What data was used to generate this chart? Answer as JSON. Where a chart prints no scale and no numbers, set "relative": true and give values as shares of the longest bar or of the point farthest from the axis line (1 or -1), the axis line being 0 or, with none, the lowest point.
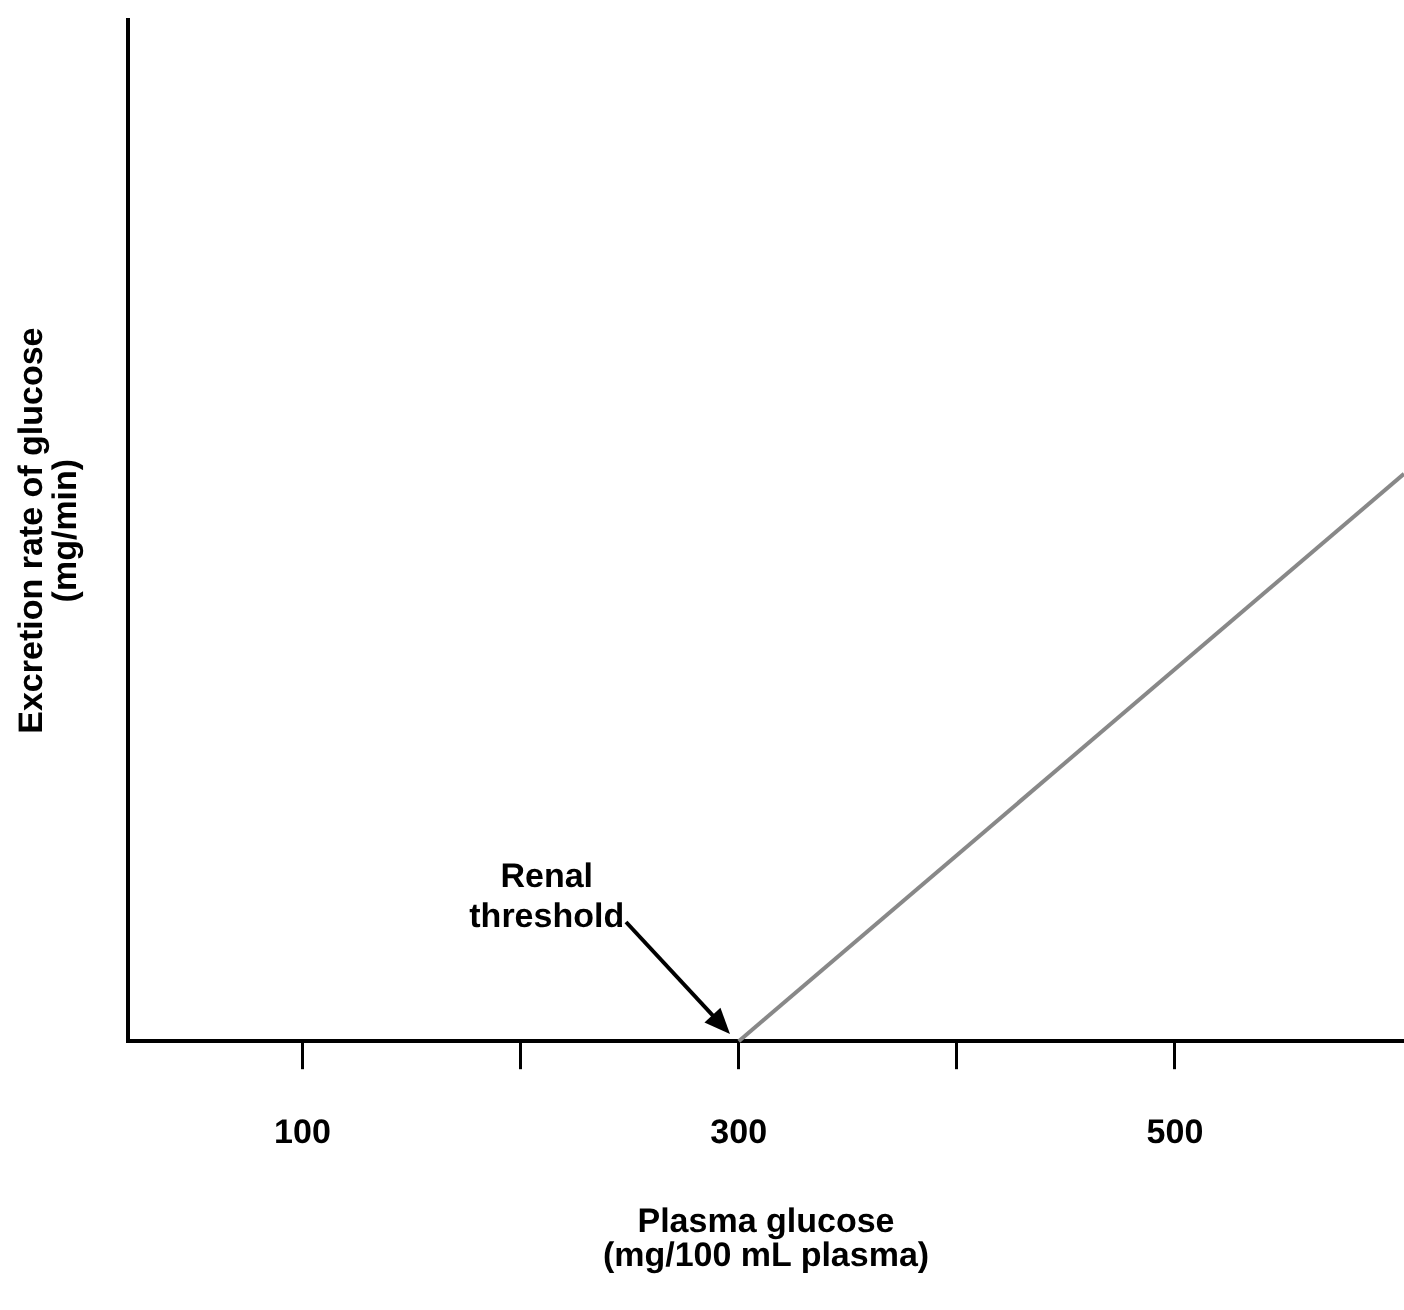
{
  "chart_data": {
    "type": "line",
    "relative": true,
    "xlabel": "Plasma glucose\n(mg/100 mL plasma)",
    "ylabel": "Excretion rate of glucose\n(mg/min)",
    "x": [
      300,
      605
    ],
    "series": [
      {
        "color": "#888888",
        "values": [
          0,
          1
        ]
      }
    ],
    "xlim": [
      20,
      605
    ],
    "xticks": [
      {
        "value": 100,
        "label": "100"
      },
      {
        "value": 200,
        "label": null
      },
      {
        "value": 300,
        "label": "300"
      },
      {
        "value": 400,
        "label": null
      },
      {
        "value": 500,
        "label": "500"
      }
    ],
    "annotations": [
      "Renal\nthreshold"
    ],
    "grid": false,
    "legend": false,
    "marker": "none",
    "line_style": "solid"
  }
}
